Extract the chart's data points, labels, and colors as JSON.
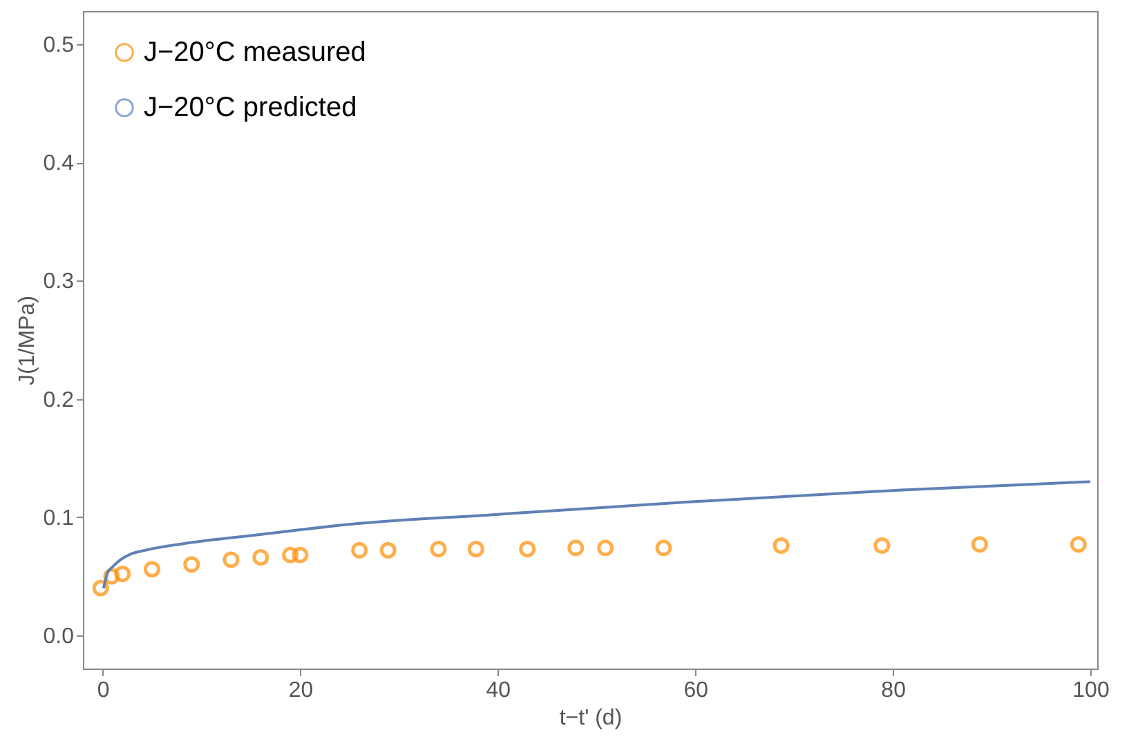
{
  "chart_data": {
    "type": "scatter",
    "xlabel": "t−t' (d)",
    "ylabel": "J(1/MPa)",
    "xlim": [
      -2,
      100.7
    ],
    "ylim": [
      -0.028,
      0.528
    ],
    "xticks": [
      0,
      20,
      40,
      60,
      80,
      100
    ],
    "yticks": [
      {
        "value": 0,
        "label": "0.0"
      },
      0.1,
      0.2,
      0.3,
      0.4,
      0.5
    ],
    "grid": false,
    "legend": "top left",
    "series": [
      {
        "name": "J−20°C measured",
        "marker": "circle",
        "color": "#ff8c00",
        "x": [
          -0.2,
          0.9,
          2.0,
          5.0,
          9.0,
          13.0,
          16.0,
          19.0,
          20.0,
          26.0,
          28.9,
          34.0,
          37.8,
          43.0,
          47.9,
          50.9,
          56.8,
          68.7,
          78.9,
          88.8,
          98.8
        ],
        "values": [
          0.04,
          0.05,
          0.052,
          0.056,
          0.06,
          0.064,
          0.066,
          0.068,
          0.068,
          0.072,
          0.072,
          0.073,
          0.073,
          0.073,
          0.074,
          0.074,
          0.074,
          0.076,
          0.076,
          0.077,
          0.077
        ]
      },
      {
        "name": "J−20°C predicted",
        "type": "line",
        "line_style": "solid",
        "color": "#5e81b5",
        "x": [
          0.1,
          0.5,
          1.0,
          1.5,
          2.9,
          4.3,
          8.5,
          15.6,
          25.1,
          39.3,
          59.6,
          80.9,
          100.0
        ],
        "values": [
          0.04,
          0.053,
          0.058,
          0.062,
          0.069,
          0.072,
          0.078,
          0.085,
          0.094,
          0.102,
          0.113,
          0.123,
          0.13
        ]
      }
    ]
  }
}
